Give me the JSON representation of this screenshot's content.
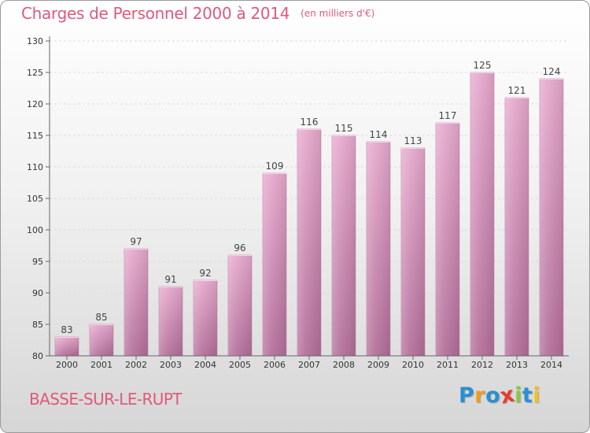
{
  "header": {
    "title": "Charges de Personnel 2000 à 2014",
    "subtitle": "(en milliers d'€)"
  },
  "footer": {
    "commune": "BASSE-SUR-LE-RUPT",
    "logo_text": "Proxiti",
    "logo_letters": [
      {
        "char": "P",
        "color": "#2a8fd4"
      },
      {
        "char": "r",
        "color": "#f29a1e"
      },
      {
        "char": "o",
        "color": "#2a8fd4"
      },
      {
        "char": "x",
        "color": "#e83b2f"
      },
      {
        "char": "i",
        "color": "#8cc63e"
      },
      {
        "char": "t",
        "color": "#2a8fd4"
      },
      {
        "char": "i",
        "color": "#f2c21e"
      }
    ]
  },
  "colors": {
    "title": "#e0597b",
    "bar_top": "#e6a8cc",
    "bar_bottom": "#b26d98",
    "bar_edge": "#c07aa5",
    "axis": "#666666",
    "grid": "#dddddd"
  },
  "chart_data": {
    "type": "bar",
    "title": "Charges de Personnel 2000 à 2014",
    "subtitle": "(en milliers d'€)",
    "xlabel": "",
    "ylabel": "",
    "categories": [
      "2000",
      "2001",
      "2002",
      "2003",
      "2004",
      "2005",
      "2006",
      "2007",
      "2008",
      "2009",
      "2010",
      "2011",
      "2012",
      "2013",
      "2014"
    ],
    "values": [
      83,
      85,
      97,
      91,
      92,
      96,
      109,
      116,
      115,
      114,
      113,
      117,
      125,
      121,
      124
    ],
    "ylim": [
      80,
      130
    ],
    "yticks": [
      80,
      85,
      90,
      95,
      100,
      105,
      110,
      115,
      120,
      125,
      130
    ],
    "grid": true,
    "legend": "none",
    "data_labels": true
  }
}
